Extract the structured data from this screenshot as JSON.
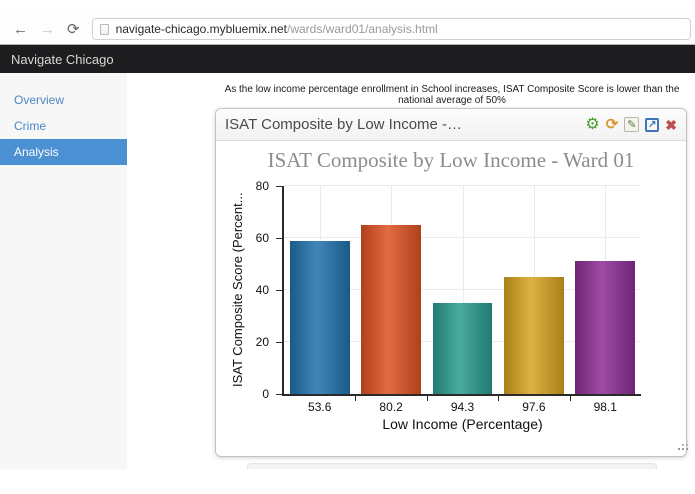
{
  "browser": {
    "url": {
      "domain": "navigate-chicago.mybluemix.net",
      "path": "/wards/ward01/analysis.html"
    },
    "icons": {
      "back": "←",
      "forward": "→",
      "reload": "⟳"
    }
  },
  "navbar": {
    "brand": "Navigate Chicago"
  },
  "sidebar": {
    "items": [
      {
        "label": "Overview",
        "active": false
      },
      {
        "label": "Crime",
        "active": false
      },
      {
        "label": "Analysis",
        "active": true
      }
    ]
  },
  "main": {
    "summary": "As the low income percentage enrollment in School increases, ISAT Composite Score is lower than the national average of 50%",
    "panel": {
      "title": "ISAT Composite by Low Income -…",
      "icons": {
        "settings": "⚙",
        "refresh": "⟳",
        "edit": "✎",
        "expand": "↗",
        "close": "✖"
      }
    }
  },
  "chart_data": {
    "type": "bar",
    "title": "ISAT Composite by Low Income - Ward 01",
    "categories": [
      "53.6",
      "80.2",
      "94.3",
      "97.6",
      "98.1"
    ],
    "values": [
      59,
      65,
      35,
      45,
      51
    ],
    "colors": [
      "#2272ae",
      "#df5323",
      "#2b9d90",
      "#d8a421",
      "#8e2f96"
    ],
    "xlabel": "Low Income (Percentage)",
    "ylabel": "ISAT Composite Score (Percent...",
    "ylim": [
      0,
      80
    ],
    "yticks": [
      0,
      20,
      40,
      60,
      80
    ],
    "grid": true,
    "legend": false
  }
}
